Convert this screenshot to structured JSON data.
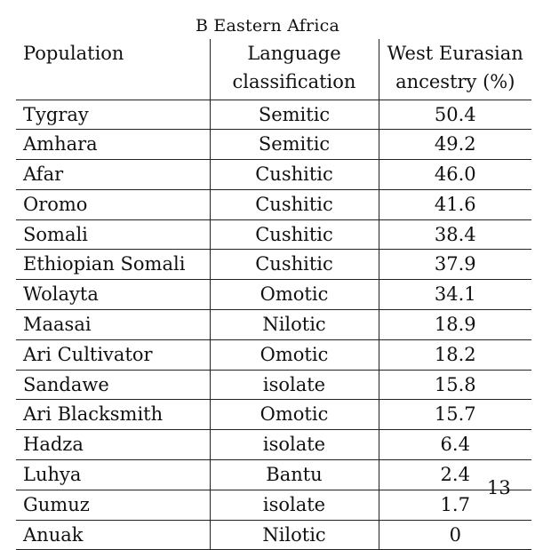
{
  "caption": "B Eastern Africa",
  "headers": {
    "population": "Population",
    "language_line1": "Language",
    "language_line2": "classification",
    "ancestry_line1": "West Eurasian",
    "ancestry_line2": "ancestry (%)"
  },
  "rows": [
    {
      "population": "Tygray",
      "language": "Semitic",
      "ancestry": "50.4"
    },
    {
      "population": "Amhara",
      "language": "Semitic",
      "ancestry": "49.2"
    },
    {
      "population": "Afar",
      "language": "Cushitic",
      "ancestry": "46.0"
    },
    {
      "population": "Oromo",
      "language": "Cushitic",
      "ancestry": "41.6"
    },
    {
      "population": "Somali",
      "language": "Cushitic",
      "ancestry": "38.4"
    },
    {
      "population": "Ethiopian Somali",
      "language": "Cushitic",
      "ancestry": "37.9"
    },
    {
      "population": "Wolayta",
      "language": "Omotic",
      "ancestry": "34.1"
    },
    {
      "population": "Maasai",
      "language": "Nilotic",
      "ancestry": "18.9"
    },
    {
      "population": "Ari Cultivator",
      "language": "Omotic",
      "ancestry": "18.2"
    },
    {
      "population": "Sandawe",
      "language": "isolate",
      "ancestry": "15.8"
    },
    {
      "population": "Ari Blacksmith",
      "language": "Omotic",
      "ancestry": "15.7"
    },
    {
      "population": "Hadza",
      "language": "isolate",
      "ancestry": "6.4"
    },
    {
      "population": "Luhya",
      "language": "Bantu",
      "ancestry": "2.4"
    },
    {
      "population": "Gumuz",
      "language": "isolate",
      "ancestry": "1.7"
    },
    {
      "population": "Anuak",
      "language": "Nilotic",
      "ancestry": "0"
    }
  ],
  "page_number": "13"
}
